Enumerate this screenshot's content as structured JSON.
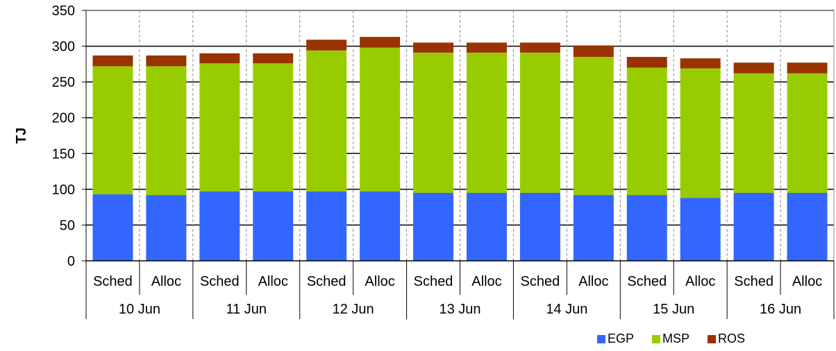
{
  "chart_data": {
    "type": "bar",
    "stacked": true,
    "ylabel": "TJ",
    "xlabel": "",
    "ylim": [
      0,
      350
    ],
    "yticks": [
      0,
      50,
      100,
      150,
      200,
      250,
      300,
      350
    ],
    "groups": [
      "10 Jun",
      "11 Jun",
      "12 Jun",
      "13 Jun",
      "14 Jun",
      "15 Jun",
      "16 Jun"
    ],
    "categories": [
      "Sched",
      "Alloc",
      "Sched",
      "Alloc",
      "Sched",
      "Alloc",
      "Sched",
      "Alloc",
      "Sched",
      "Alloc",
      "Sched",
      "Alloc",
      "Sched",
      "Alloc"
    ],
    "series": [
      {
        "name": "EGP",
        "color": "#3366ff",
        "values": [
          93,
          92,
          97,
          97,
          97,
          97,
          95,
          95,
          95,
          92,
          92,
          88,
          95,
          95
        ]
      },
      {
        "name": "MSP",
        "color": "#99cc00",
        "values": [
          179,
          180,
          179,
          179,
          197,
          201,
          196,
          196,
          196,
          193,
          178,
          181,
          167,
          167
        ]
      },
      {
        "name": "ROS",
        "color": "#993300",
        "values": [
          15,
          15,
          14,
          14,
          15,
          15,
          14,
          14,
          14,
          16,
          15,
          14,
          15,
          15
        ]
      }
    ],
    "grid": true,
    "legend_position": "bottom-right"
  }
}
